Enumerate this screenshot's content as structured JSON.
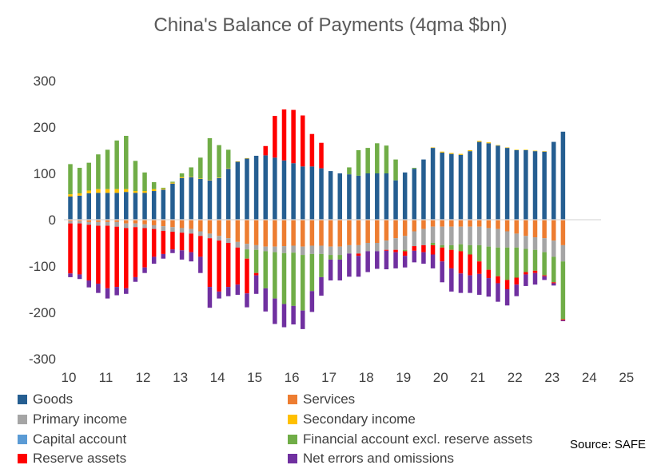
{
  "chart_data": {
    "type": "bar",
    "stacked": true,
    "title": "China's Balance of Payments (4qma $bn)",
    "ylim": [
      -300,
      300
    ],
    "y_ticks": [
      300,
      200,
      100,
      0,
      -100,
      -200,
      -300
    ],
    "x_tick_labels": [
      "10",
      "11",
      "12",
      "13",
      "14",
      "15",
      "16",
      "17",
      "18",
      "19",
      "20",
      "21",
      "22",
      "23",
      "24",
      "25"
    ],
    "bars_per_year": 4,
    "grid": false,
    "legend_position": "bottom",
    "source": "Source: SAFE",
    "series": [
      {
        "name": "Goods",
        "color": "#255E91",
        "values": [
          50,
          52,
          57,
          58,
          58,
          58,
          60,
          58,
          58,
          62,
          65,
          78,
          90,
          92,
          88,
          85,
          90,
          110,
          125,
          132,
          138,
          139,
          134,
          128,
          122,
          115,
          115,
          111,
          105,
          100,
          98,
          95,
          100,
          100,
          100,
          85,
          102,
          110,
          130,
          155,
          145,
          142,
          140,
          148,
          168,
          165,
          160,
          155,
          150,
          150,
          148,
          147,
          168,
          190
        ]
      },
      {
        "name": "Services",
        "color": "#ED7D31",
        "values": [
          -3,
          -3,
          -5,
          -5,
          -5,
          -5,
          -8,
          -8,
          -10,
          -12,
          -14,
          -16,
          -18,
          -20,
          -25,
          -30,
          -35,
          -40,
          -48,
          -52,
          -55,
          -58,
          -58,
          -57,
          -56,
          -58,
          -56,
          -56,
          -58,
          -58,
          -55,
          -55,
          -50,
          -50,
          -45,
          -40,
          -35,
          -25,
          -20,
          -15,
          -15,
          -15,
          -15,
          -15,
          -15,
          -18,
          -20,
          -25,
          -30,
          -35,
          -38,
          -40,
          -45,
          -55
        ]
      },
      {
        "name": "Primary income",
        "color": "#A5A5A5",
        "values": [
          -5,
          -5,
          -6,
          -8,
          -8,
          -10,
          -10,
          -8,
          -8,
          -8,
          -10,
          -10,
          -10,
          -10,
          -10,
          -10,
          -10,
          -10,
          -12,
          -12,
          -10,
          -10,
          -12,
          -15,
          -15,
          -18,
          -18,
          -18,
          -18,
          -18,
          -18,
          -18,
          -18,
          -18,
          -20,
          -25,
          -30,
          -32,
          -35,
          -35,
          -40,
          -40,
          -38,
          -40,
          -40,
          -40,
          -40,
          -35,
          -30,
          -28,
          -27,
          -30,
          -35,
          -35
        ]
      },
      {
        "name": "Secondary income",
        "color": "#FFC000",
        "values": [
          5,
          5,
          6,
          8,
          8,
          8,
          6,
          4,
          4,
          4,
          2,
          2,
          2,
          1,
          1,
          1,
          1,
          1,
          1,
          1,
          0,
          0,
          0,
          0,
          0,
          0,
          0,
          0,
          0,
          0,
          0,
          0,
          0,
          0,
          0,
          0,
          0,
          0,
          0,
          1,
          2,
          2,
          2,
          2,
          2,
          2,
          1,
          1,
          1,
          1,
          1,
          1,
          0,
          0
        ]
      },
      {
        "name": "Capital account",
        "color": "#5B9BD5",
        "values": [
          0,
          0,
          0,
          0,
          0,
          0,
          0,
          0,
          0,
          0,
          0,
          0,
          0,
          0,
          0,
          0,
          0,
          0,
          0,
          0,
          0,
          0,
          0,
          0,
          0,
          0,
          0,
          0,
          0,
          0,
          0,
          0,
          0,
          0,
          0,
          0,
          0,
          0,
          0,
          0,
          0,
          0,
          0,
          0,
          0,
          0,
          0,
          0,
          0,
          0,
          0,
          0,
          0,
          0
        ]
      },
      {
        "name": "Financial account excl. reserve assets",
        "color": "#70AD47",
        "values": [
          65,
          55,
          60,
          75,
          85,
          105,
          115,
          65,
          40,
          15,
          2,
          2,
          8,
          20,
          45,
          90,
          70,
          40,
          0,
          -20,
          -50,
          -80,
          -100,
          -110,
          -115,
          -120,
          -80,
          -50,
          -10,
          -10,
          15,
          55,
          55,
          65,
          60,
          45,
          -3,
          2,
          0,
          -5,
          -5,
          -10,
          -15,
          -20,
          -35,
          -50,
          -62,
          -70,
          -65,
          -50,
          -45,
          -50,
          -55,
          -125
        ]
      },
      {
        "name": "Reserve assets",
        "color": "#FF0000",
        "values": [
          -108,
          -110,
          -120,
          -125,
          -135,
          -130,
          -130,
          -108,
          -85,
          -60,
          -50,
          -38,
          -38,
          -40,
          -45,
          -105,
          -110,
          -95,
          -80,
          -75,
          -5,
          20,
          90,
          110,
          115,
          110,
          70,
          55,
          0,
          0,
          0,
          -5,
          0,
          0,
          -2,
          -5,
          -10,
          -10,
          -15,
          -20,
          -30,
          -40,
          -48,
          -45,
          -27,
          -18,
          -15,
          -20,
          -15,
          -5,
          -5,
          -2,
          -2,
          -2
        ]
      },
      {
        "name": "Net errors and omissions",
        "color": "#7030A0",
        "values": [
          -8,
          -10,
          -15,
          -20,
          -22,
          -18,
          -12,
          -10,
          -12,
          -15,
          -10,
          -8,
          -20,
          -20,
          -35,
          -45,
          -15,
          -20,
          -22,
          -30,
          -40,
          -50,
          -55,
          -50,
          -40,
          -40,
          -45,
          -40,
          -45,
          -45,
          -50,
          -45,
          -45,
          -38,
          -40,
          -35,
          -25,
          -25,
          -25,
          -30,
          -45,
          -50,
          -42,
          -38,
          -45,
          -40,
          -40,
          -35,
          -25,
          -25,
          -25,
          -8,
          -5,
          -2
        ]
      }
    ]
  }
}
